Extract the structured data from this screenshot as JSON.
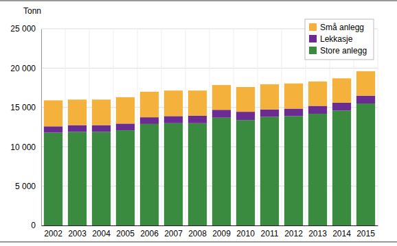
{
  "chart_data": {
    "type": "bar",
    "stacked": true,
    "y_label": "Tonn",
    "categories": [
      "2002",
      "2003",
      "2004",
      "2005",
      "2006",
      "2007",
      "2008",
      "2009",
      "2010",
      "2011",
      "2012",
      "2013",
      "2014",
      "2015"
    ],
    "series": [
      {
        "name": "Store anlegg",
        "color": "#3a8a3f",
        "values": [
          11800,
          11900,
          11900,
          12100,
          12900,
          13000,
          13000,
          13700,
          13400,
          13800,
          13900,
          14200,
          14600,
          15500
        ]
      },
      {
        "name": "Lekkasje",
        "color": "#6b2c91",
        "values": [
          800,
          850,
          850,
          850,
          850,
          900,
          950,
          1000,
          1050,
          950,
          950,
          1000,
          1000,
          1000
        ]
      },
      {
        "name": "Små anlegg",
        "color": "#f4b13b",
        "values": [
          3300,
          3250,
          3250,
          3350,
          3250,
          3250,
          3200,
          3150,
          3150,
          3200,
          3200,
          3100,
          3100,
          3100
        ]
      }
    ],
    "ylim": [
      0,
      25000
    ],
    "yticks": [
      0,
      {
        "value": 5000,
        "label": "5 000"
      },
      {
        "value": 10000,
        "label": "10 000"
      },
      {
        "value": 15000,
        "label": "15 000"
      },
      {
        "value": 20000,
        "label": "20 000"
      },
      {
        "value": 25000,
        "label": "25 000"
      }
    ],
    "grid": true,
    "legend": "upper right"
  }
}
